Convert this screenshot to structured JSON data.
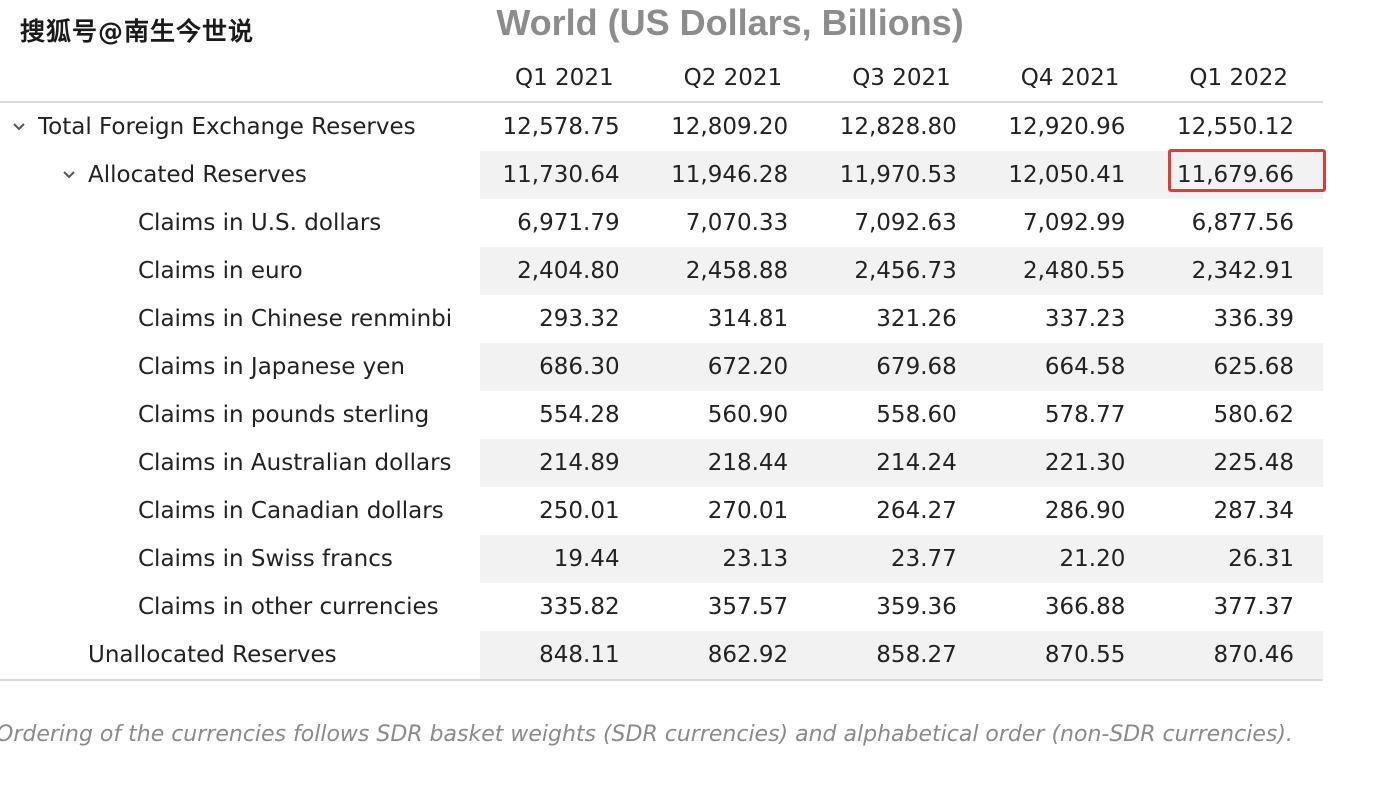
{
  "watermark": "搜狐号@南生今世说",
  "title": "World (US Dollars, Billions)",
  "columns": [
    "Q1 2021",
    "Q2 2021",
    "Q3 2021",
    "Q4 2021",
    "Q1 2022"
  ],
  "rows": [
    {
      "label": "Total Foreign Exchange Reserves",
      "values": [
        "12,578.75",
        "12,809.20",
        "12,828.80",
        "12,920.96",
        "12,550.12"
      ]
    },
    {
      "label": "Allocated Reserves",
      "values": [
        "11,730.64",
        "11,946.28",
        "11,970.53",
        "12,050.41",
        "11,679.66"
      ]
    },
    {
      "label": "Claims in U.S. dollars",
      "values": [
        "6,971.79",
        "7,070.33",
        "7,092.63",
        "7,092.99",
        "6,877.56"
      ]
    },
    {
      "label": "Claims in euro",
      "values": [
        "2,404.80",
        "2,458.88",
        "2,456.73",
        "2,480.55",
        "2,342.91"
      ]
    },
    {
      "label": "Claims in Chinese renminbi",
      "values": [
        "293.32",
        "314.81",
        "321.26",
        "337.23",
        "336.39"
      ]
    },
    {
      "label": "Claims in Japanese yen",
      "values": [
        "686.30",
        "672.20",
        "679.68",
        "664.58",
        "625.68"
      ]
    },
    {
      "label": "Claims in pounds sterling",
      "values": [
        "554.28",
        "560.90",
        "558.60",
        "578.77",
        "580.62"
      ]
    },
    {
      "label": "Claims in Australian dollars",
      "values": [
        "214.89",
        "218.44",
        "214.24",
        "221.30",
        "225.48"
      ]
    },
    {
      "label": "Claims in Canadian dollars",
      "values": [
        "250.01",
        "270.01",
        "264.27",
        "286.90",
        "287.34"
      ]
    },
    {
      "label": "Claims in Swiss francs",
      "values": [
        "19.44",
        "23.13",
        "23.77",
        "21.20",
        "26.31"
      ]
    },
    {
      "label": "Claims in other currencies",
      "values": [
        "335.82",
        "357.57",
        "359.36",
        "366.88",
        "377.37"
      ]
    },
    {
      "label": "Unallocated Reserves",
      "values": [
        "848.11",
        "862.92",
        "858.27",
        "870.55",
        "870.46"
      ]
    }
  ],
  "footnote": "Ordering of the currencies follows SDR basket weights (SDR currencies) and alphabetical order (non-SDR currencies).",
  "icons": {
    "expand": "chevron-down-icon"
  },
  "colors": {
    "highlight": "#e53935",
    "shade": "#f2f2f2",
    "title": "#8c8c8c"
  }
}
